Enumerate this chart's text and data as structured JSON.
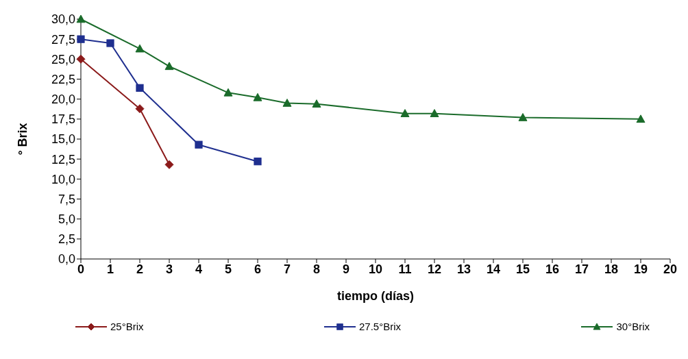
{
  "chart_data": {
    "type": "line",
    "xlabel": "tiempo (días)",
    "ylabel": "° Brix",
    "xlim": [
      0,
      20
    ],
    "xticks": [
      0,
      1,
      2,
      3,
      4,
      5,
      6,
      7,
      8,
      9,
      10,
      11,
      12,
      13,
      14,
      15,
      16,
      17,
      18,
      19,
      20
    ],
    "ylim": [
      0,
      30
    ],
    "yticks": [
      {
        "value": 0,
        "label": "0,0"
      },
      {
        "value": 2.5,
        "label": "2,5"
      },
      {
        "value": 5,
        "label": "5,0"
      },
      {
        "value": 7.5,
        "label": "7,5"
      },
      {
        "value": 10,
        "label": "10,0"
      },
      {
        "value": 12.5,
        "label": "12,5"
      },
      {
        "value": 15,
        "label": "15,0"
      },
      {
        "value": 17.5,
        "label": "17,5"
      },
      {
        "value": 20,
        "label": "20,0"
      },
      {
        "value": 22.5,
        "label": "22,5"
      },
      {
        "value": 25,
        "label": "25,0"
      },
      {
        "value": 27.5,
        "label": "27,5"
      },
      {
        "value": 30,
        "label": "30,0"
      }
    ],
    "grid": false,
    "legend": "bottom",
    "line_style": "solid",
    "series": [
      {
        "name": "25°Brix",
        "color": "#8b1a1a",
        "marker": "diamond",
        "x": [
          0,
          2,
          3
        ],
        "values": [
          25.0,
          18.8,
          11.8
        ]
      },
      {
        "name": "27.5°Brix",
        "color": "#1f2f8f",
        "marker": "square",
        "x": [
          0,
          1,
          2,
          4,
          6
        ],
        "values": [
          27.5,
          27.0,
          21.4,
          14.3,
          12.2
        ]
      },
      {
        "name": "30°Brix",
        "color": "#1a6b2a",
        "marker": "triangle",
        "x": [
          0,
          2,
          3,
          5,
          6,
          7,
          8,
          11,
          12,
          15,
          19
        ],
        "values": [
          30.0,
          26.3,
          24.1,
          20.8,
          20.2,
          19.5,
          19.4,
          18.2,
          18.2,
          17.7,
          17.5
        ]
      }
    ]
  }
}
